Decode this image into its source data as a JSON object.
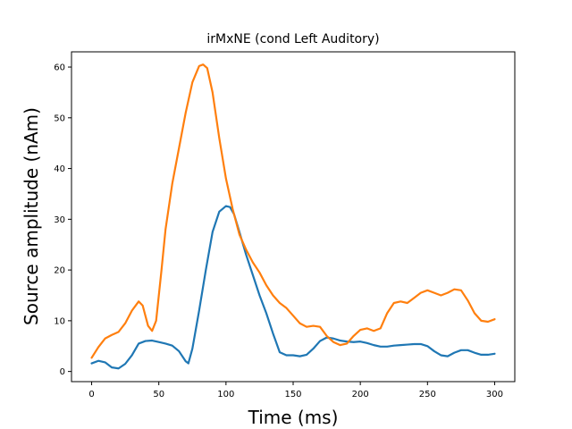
{
  "chart_data": {
    "type": "line",
    "title": "irMxNE (cond Left Auditory)",
    "xlabel": "Time (ms)",
    "ylabel": "Source amplitude (nAm)",
    "xlim": [
      -15,
      315
    ],
    "ylim": [
      -2,
      63
    ],
    "xticks": [
      0,
      50,
      100,
      150,
      200,
      250,
      300
    ],
    "yticks": [
      0,
      10,
      20,
      30,
      40,
      50,
      60
    ],
    "grid": false,
    "legend": "none",
    "series": [
      {
        "color": "#1f77b4",
        "x": [
          0,
          5,
          10,
          15,
          20,
          25,
          30,
          35,
          40,
          45,
          50,
          55,
          60,
          65,
          70,
          72,
          75,
          80,
          85,
          90,
          95,
          100,
          103,
          106,
          110,
          115,
          120,
          125,
          130,
          135,
          140,
          145,
          150,
          155,
          160,
          165,
          170,
          175,
          180,
          185,
          190,
          195,
          200,
          205,
          210,
          215,
          220,
          225,
          230,
          235,
          240,
          245,
          250,
          255,
          260,
          265,
          270,
          275,
          280,
          285,
          290,
          295,
          300
        ],
        "y": [
          1.6,
          2.1,
          1.8,
          0.8,
          0.6,
          1.5,
          3.2,
          5.5,
          6.0,
          6.1,
          5.8,
          5.5,
          5.1,
          4.0,
          2.0,
          1.6,
          4.5,
          12.0,
          20.0,
          27.5,
          31.5,
          32.6,
          32.4,
          31.0,
          27.5,
          23.0,
          19.0,
          15.0,
          11.5,
          7.5,
          3.8,
          3.2,
          3.2,
          3.0,
          3.3,
          4.5,
          6.0,
          6.7,
          6.5,
          6.1,
          5.9,
          5.8,
          5.9,
          5.6,
          5.2,
          4.9,
          4.9,
          5.1,
          5.2,
          5.3,
          5.4,
          5.4,
          5.0,
          4.0,
          3.2,
          3.0,
          3.7,
          4.2,
          4.2,
          3.7,
          3.3,
          3.3,
          3.5
        ]
      },
      {
        "color": "#ff7f0e",
        "x": [
          0,
          5,
          10,
          15,
          20,
          25,
          30,
          35,
          38,
          42,
          45,
          48,
          52,
          55,
          60,
          65,
          70,
          75,
          80,
          83,
          86,
          90,
          95,
          100,
          105,
          110,
          115,
          120,
          125,
          130,
          135,
          140,
          145,
          150,
          155,
          160,
          165,
          170,
          175,
          180,
          185,
          190,
          195,
          200,
          205,
          210,
          215,
          220,
          225,
          230,
          235,
          240,
          245,
          250,
          255,
          260,
          265,
          270,
          275,
          280,
          285,
          290,
          295,
          300
        ],
        "y": [
          2.7,
          4.8,
          6.5,
          7.2,
          7.8,
          9.5,
          12.0,
          13.8,
          13.0,
          9.0,
          8.0,
          10.0,
          20.0,
          28.0,
          37.0,
          44.0,
          51.0,
          57.0,
          60.2,
          60.5,
          59.8,
          55.0,
          46.0,
          38.0,
          32.0,
          27.0,
          24.0,
          21.5,
          19.5,
          17.0,
          15.0,
          13.5,
          12.5,
          11.0,
          9.5,
          8.8,
          9.0,
          8.8,
          7.0,
          5.8,
          5.2,
          5.5,
          7.0,
          8.2,
          8.5,
          8.0,
          8.5,
          11.5,
          13.5,
          13.8,
          13.5,
          14.5,
          15.5,
          16.0,
          15.5,
          15.0,
          15.5,
          16.2,
          16.0,
          14.0,
          11.5,
          10.0,
          9.8,
          10.3
        ]
      }
    ]
  }
}
